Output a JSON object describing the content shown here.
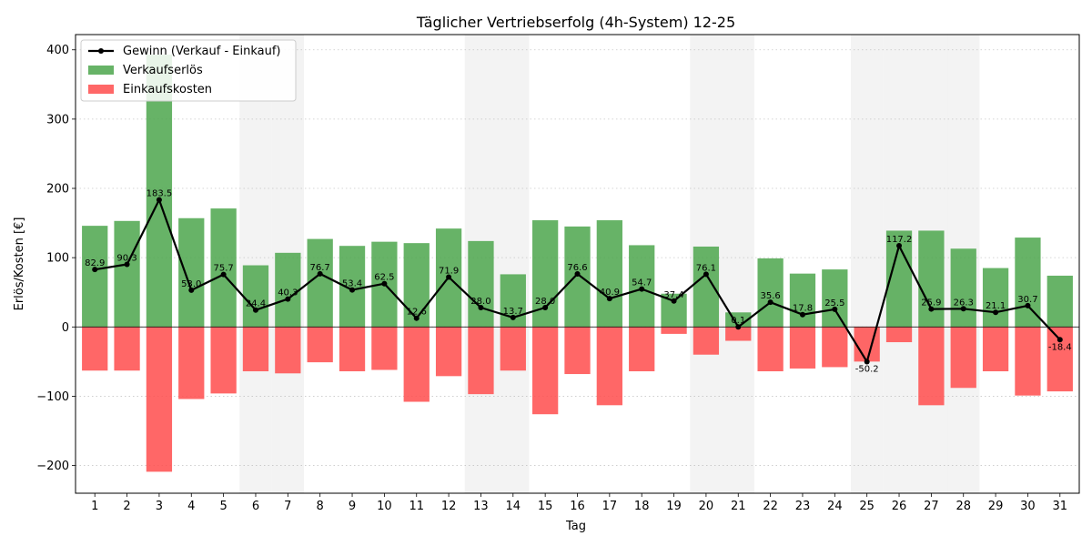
{
  "chart_data": {
    "type": "bar",
    "title": "Täglicher Vertriebserfolg (4h-System) 12-25",
    "xlabel": "Tag",
    "ylabel": "Erlös/Kosten [€]",
    "x": [
      1,
      2,
      3,
      4,
      5,
      6,
      7,
      8,
      9,
      10,
      11,
      12,
      13,
      14,
      15,
      16,
      17,
      18,
      19,
      20,
      21,
      22,
      23,
      24,
      25,
      26,
      27,
      28,
      29,
      30,
      31
    ],
    "xticks": [
      "1",
      "2",
      "3",
      "4",
      "5",
      "6",
      "7",
      "8",
      "9",
      "10",
      "11",
      "12",
      "13",
      "14",
      "15",
      "16",
      "17",
      "18",
      "19",
      "20",
      "21",
      "22",
      "23",
      "24",
      "25",
      "26",
      "27",
      "28",
      "29",
      "30",
      "31"
    ],
    "ylim": [
      -240,
      422
    ],
    "yticks": [
      -200,
      -100,
      0,
      100,
      200,
      300,
      400
    ],
    "yticklabels": [
      "−200",
      "−100",
      "0",
      "100",
      "200",
      "300",
      "400"
    ],
    "grid": "y-dotted",
    "legend_position": "top-left",
    "shaded_days": [
      6,
      7,
      13,
      14,
      20,
      21,
      25,
      26,
      27,
      28
    ],
    "series": [
      {
        "name": "Gewinn (Verkauf - Einkauf)",
        "kind": "line",
        "color": "#000000",
        "values": [
          82.9,
          90.3,
          183.5,
          53.0,
          75.7,
          24.4,
          40.3,
          76.7,
          53.4,
          62.5,
          12.6,
          71.9,
          28.0,
          13.7,
          28.0,
          76.6,
          40.9,
          54.7,
          37.4,
          76.1,
          0.1,
          35.6,
          17.8,
          25.5,
          -50.2,
          117.2,
          25.9,
          26.3,
          21.1,
          30.7,
          -18.4
        ],
        "labels": [
          "82.9",
          "90.3",
          "183.5",
          "53.0",
          "75.7",
          "24.4",
          "40.3",
          "76.7",
          "53.4",
          "62.5",
          "12.6",
          "71.9",
          "28.0",
          "13.7",
          "28.0",
          "76.6",
          "40.9",
          "54.7",
          "37.4",
          "76.1",
          "0.1",
          "35.6",
          "17.8",
          "25.5",
          "-50.2",
          "117.2",
          "25.9",
          "26.3",
          "21.1",
          "30.7",
          "-18.4"
        ]
      },
      {
        "name": "Verkaufserlös",
        "kind": "bar",
        "color": "#4ca64c",
        "values": [
          146,
          153,
          393,
          157,
          171,
          89,
          107,
          127,
          117,
          123,
          121,
          142,
          124,
          76,
          154,
          145,
          154,
          118,
          48,
          116,
          21,
          99,
          77,
          83,
          0,
          139,
          139,
          113,
          85,
          129,
          74
        ]
      },
      {
        "name": "Einkaufskosten",
        "kind": "bar",
        "color": "#ff4c4c",
        "values": [
          -63,
          -63,
          -209,
          -104,
          -96,
          -64,
          -67,
          -51,
          -64,
          -62,
          -108,
          -71,
          -97,
          -63,
          -126,
          -68,
          -113,
          -64,
          -10,
          -40,
          -20,
          -64,
          -60,
          -58,
          -50,
          -22,
          -113,
          -88,
          -64,
          -99,
          -93
        ]
      }
    ]
  }
}
